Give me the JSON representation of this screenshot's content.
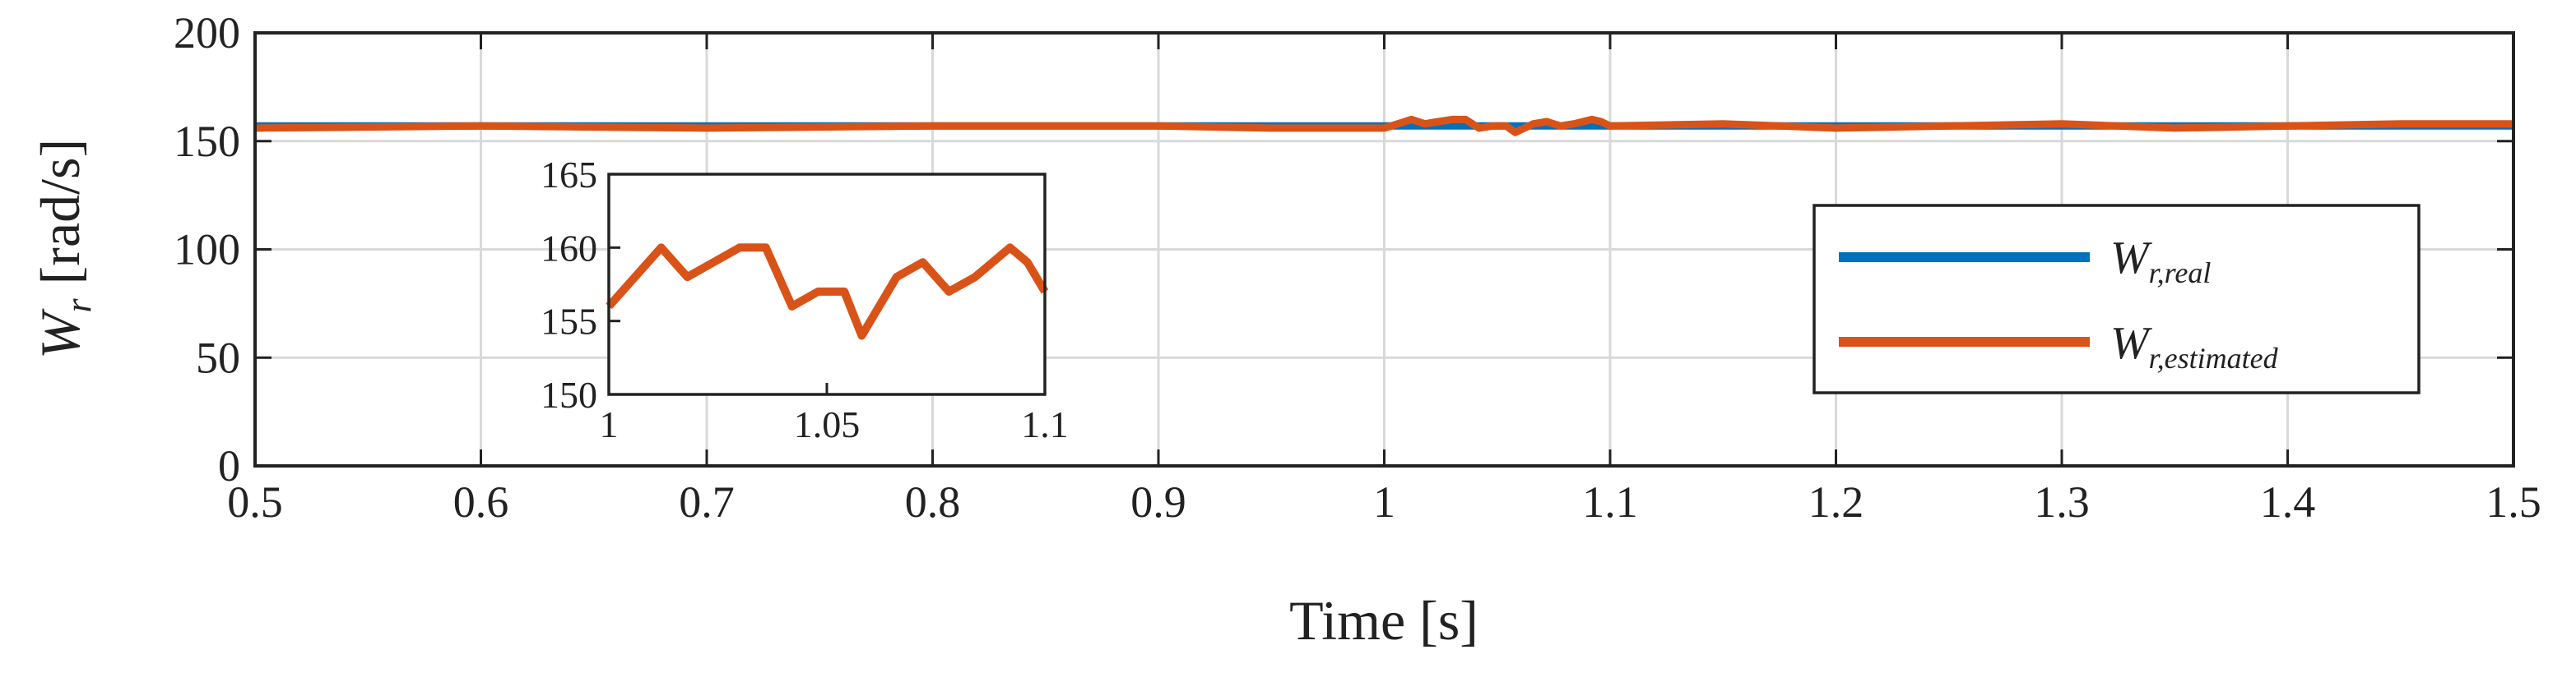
{
  "chart_data": {
    "type": "line",
    "xlabel": "Time [s]",
    "ylabel_symbol": "W",
    "ylabel_subscript": "r",
    "ylabel_unit": "[rad/s]",
    "xlim": [
      0.5,
      1.5
    ],
    "ylim": [
      0,
      200
    ],
    "xticks": [
      "0.5",
      "0.6",
      "0.7",
      "0.8",
      "0.9",
      "1",
      "1.1",
      "1.2",
      "1.3",
      "1.4",
      "1.5"
    ],
    "yticks": [
      "0",
      "50",
      "100",
      "150",
      "200"
    ],
    "grid": true,
    "legend_position": "right",
    "colors": {
      "real": "#0072bd",
      "estimated": "#d95319"
    },
    "series": [
      {
        "name": "W_r,real",
        "legend_main": "W",
        "legend_sub": "r,real",
        "x": [
          0.5,
          1.0,
          1.5
        ],
        "values": [
          157,
          157,
          157
        ]
      },
      {
        "name": "W_r,estimated",
        "legend_main": "W",
        "legend_sub": "r,estimated",
        "x": [
          0.5,
          0.6,
          0.7,
          0.8,
          0.9,
          0.95,
          1.0,
          1.006,
          1.012,
          1.018,
          1.024,
          1.03,
          1.036,
          1.042,
          1.048,
          1.054,
          1.058,
          1.062,
          1.066,
          1.072,
          1.078,
          1.084,
          1.088,
          1.092,
          1.096,
          1.1,
          1.15,
          1.2,
          1.25,
          1.3,
          1.35,
          1.4,
          1.45,
          1.5
        ],
        "values": [
          156,
          157,
          156,
          157,
          157,
          156,
          156,
          158,
          160,
          158,
          159,
          160,
          160,
          156,
          157,
          157,
          154,
          156,
          158,
          159,
          157,
          158,
          159,
          160,
          159,
          157,
          158,
          156,
          157,
          158,
          156,
          157,
          158,
          158
        ]
      }
    ],
    "inset": {
      "xlim": [
        1,
        1.1
      ],
      "ylim": [
        150,
        165
      ],
      "xticks": [
        "1",
        "1.05",
        "1.1"
      ],
      "yticks": [
        "150",
        "155",
        "160",
        "165"
      ],
      "grid": false
    }
  }
}
